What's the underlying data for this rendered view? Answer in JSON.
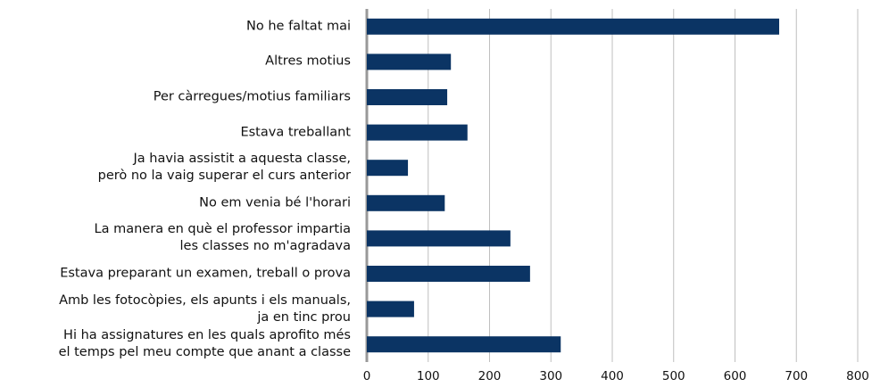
{
  "chart_data": {
    "type": "barh",
    "categories": [
      "No he faltat mai",
      "Altres motius",
      "Per càrregues/motius familiars",
      "Estava treballant",
      "Ja havia assistit a aquesta classe,\nperò no la vaig superar el curs anterior",
      "No em venia bé l'horari",
      "La manera en què el professor impartia\nles classes no m'agradava",
      "Estava preparant un examen, treball o prova",
      "Amb les fotocòpies, els apunts i els manuals,\nja en tinc prou",
      "Hi ha assignatures en les quals aprofito més\nel temps pel meu compte que anant a classe"
    ],
    "values": [
      672,
      137,
      131,
      164,
      67,
      127,
      234,
      266,
      77,
      316
    ],
    "color": "#0b3464",
    "xlim": [
      0,
      800
    ],
    "xticks": [
      0,
      100,
      200,
      300,
      400,
      500,
      600,
      700,
      800
    ],
    "grid": true
  }
}
